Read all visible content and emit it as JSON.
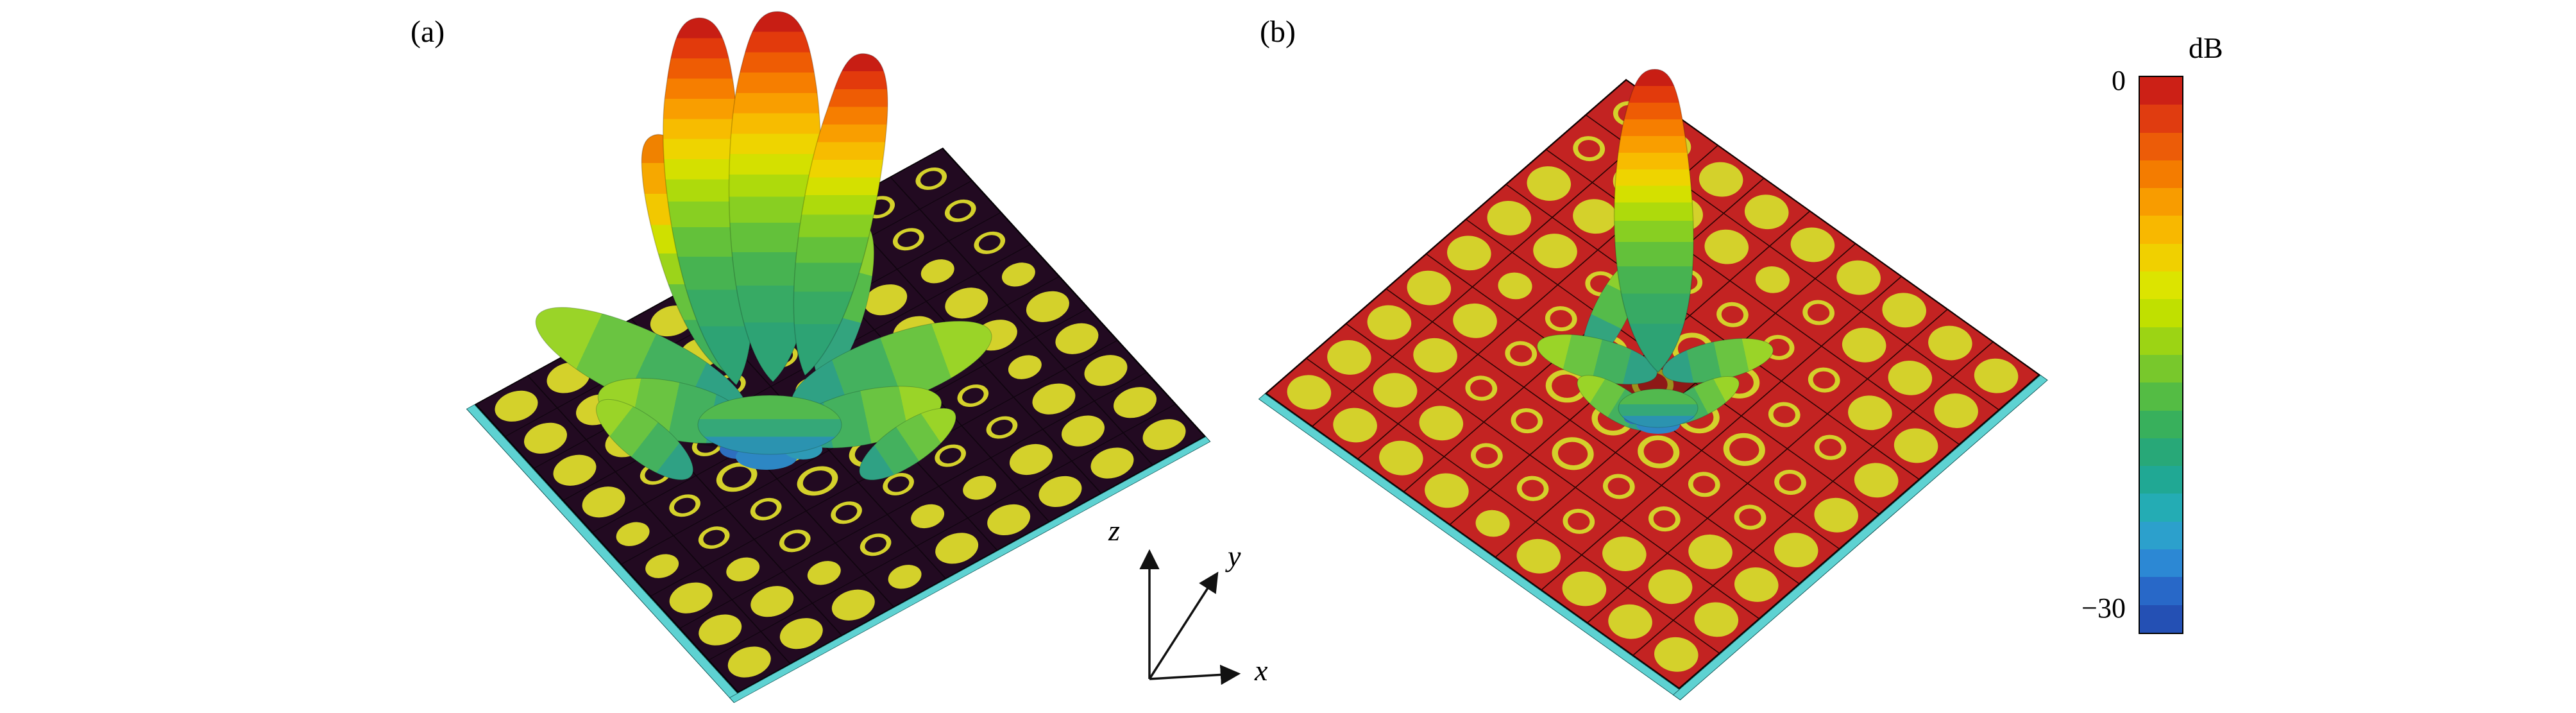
{
  "figure": {
    "panel_a_label": "(a)",
    "panel_b_label": "(b)",
    "axes_triad": {
      "x": "x",
      "y": "y",
      "z": "z"
    },
    "colorbar": {
      "title": "dB",
      "tick_max": "0",
      "tick_min": "−30",
      "bands": [
        "#cc2016",
        "#e03c10",
        "#ec5c08",
        "#f47c00",
        "#f89c00",
        "#f8b800",
        "#f0d000",
        "#dce400",
        "#c0e000",
        "#9cd414",
        "#78c82c",
        "#54bc44",
        "#38b05c",
        "#28a878",
        "#20a894",
        "#24acb4",
        "#2ca0cc",
        "#2c88d4",
        "#2868c8",
        "#2450b4"
      ]
    }
  },
  "plates": {
    "a": {
      "bg": "#220a21",
      "dot_color": "#d4d12b",
      "edge_color": "#5ed2d2",
      "grid_line": "rgba(0,0,0,0.55)",
      "grid": [
        [
          "o",
          "o",
          "o",
          "d",
          "D",
          "D",
          "D",
          "D",
          "D"
        ],
        [
          "o",
          "o",
          "d",
          "D",
          "D",
          "d",
          "D",
          "D",
          "D"
        ],
        [
          "o",
          "d",
          "D",
          "D",
          "d",
          "o",
          "o",
          "D",
          "D"
        ],
        [
          "d",
          "D",
          "D",
          "o",
          "o",
          "o",
          "o",
          "d",
          "D"
        ],
        [
          "D",
          "D",
          "o",
          "o",
          "O",
          "O",
          "o",
          "d",
          "D"
        ],
        [
          "D",
          "D",
          "o",
          "O",
          "O",
          "O",
          "o",
          "o",
          "d"
        ],
        [
          "D",
          "D",
          "o",
          "o",
          "O",
          "o",
          "o",
          "d",
          "D"
        ],
        [
          "D",
          "D",
          "D",
          "o",
          "o",
          "o",
          "d",
          "D",
          "D"
        ],
        [
          "D",
          "D",
          "D",
          "D",
          "d",
          "d",
          "D",
          "D",
          "D"
        ]
      ]
    },
    "b": {
      "bg": "#c32322",
      "dot_color": "#d4d12b",
      "edge_color": "#5ed2d2",
      "grid_line": "#1d0000",
      "grid": [
        [
          "o",
          "o",
          "D",
          "D",
          "D",
          "D",
          "D",
          "D",
          "D"
        ],
        [
          "o",
          "D",
          "D",
          "D",
          "d",
          "o",
          "D",
          "D",
          "D"
        ],
        [
          "D",
          "D",
          "D",
          "o",
          "o",
          "o",
          "o",
          "D",
          "D"
        ],
        [
          "D",
          "D",
          "o",
          "o",
          "O",
          "O",
          "o",
          "o",
          "D"
        ],
        [
          "D",
          "d",
          "o",
          "O",
          "O",
          "O",
          "O",
          "o",
          "D"
        ],
        [
          "D",
          "D",
          "o",
          "O",
          "O",
          "O",
          "o",
          "o",
          "D"
        ],
        [
          "D",
          "D",
          "o",
          "o",
          "O",
          "o",
          "o",
          "D",
          "D"
        ],
        [
          "D",
          "D",
          "D",
          "o",
          "o",
          "o",
          "D",
          "D",
          "D"
        ],
        [
          "D",
          "D",
          "D",
          "D",
          "d",
          "D",
          "D",
          "D",
          "D"
        ]
      ]
    }
  },
  "chart_data": {
    "type": "3d-radiation-pattern",
    "panels": [
      {
        "label": "(a)",
        "surface": "9x9 metasurface of yellow circular patches and ring slots on dark substrate with cyan edge",
        "pattern": "multi-beam far-field pattern with four tilted main lobes and green/blue side-lobe skirt",
        "n_main_lobes": 4,
        "tip_level_db": 0
      },
      {
        "label": "(b)",
        "surface": "9x9 metasurface of yellow circular patches and ring slots on red substrate with cyan edge",
        "pattern": "single broadside pencil beam along z with small green/blue side lobes",
        "n_main_lobes": 1,
        "tip_level_db": 0
      }
    ],
    "colorbar": {
      "title": "dB",
      "range": [
        -30,
        0
      ],
      "ticks": [
        0,
        -30
      ],
      "colormap": "jet-like, red=0 dB (top) to blue=-30 dB (bottom)"
    },
    "axes_triad": [
      "x",
      "y",
      "z"
    ],
    "grid_legend": {
      "D": "large filled circular patch",
      "d": "small filled circular patch",
      "O": "large ring slot",
      "o": "small ring slot"
    }
  }
}
